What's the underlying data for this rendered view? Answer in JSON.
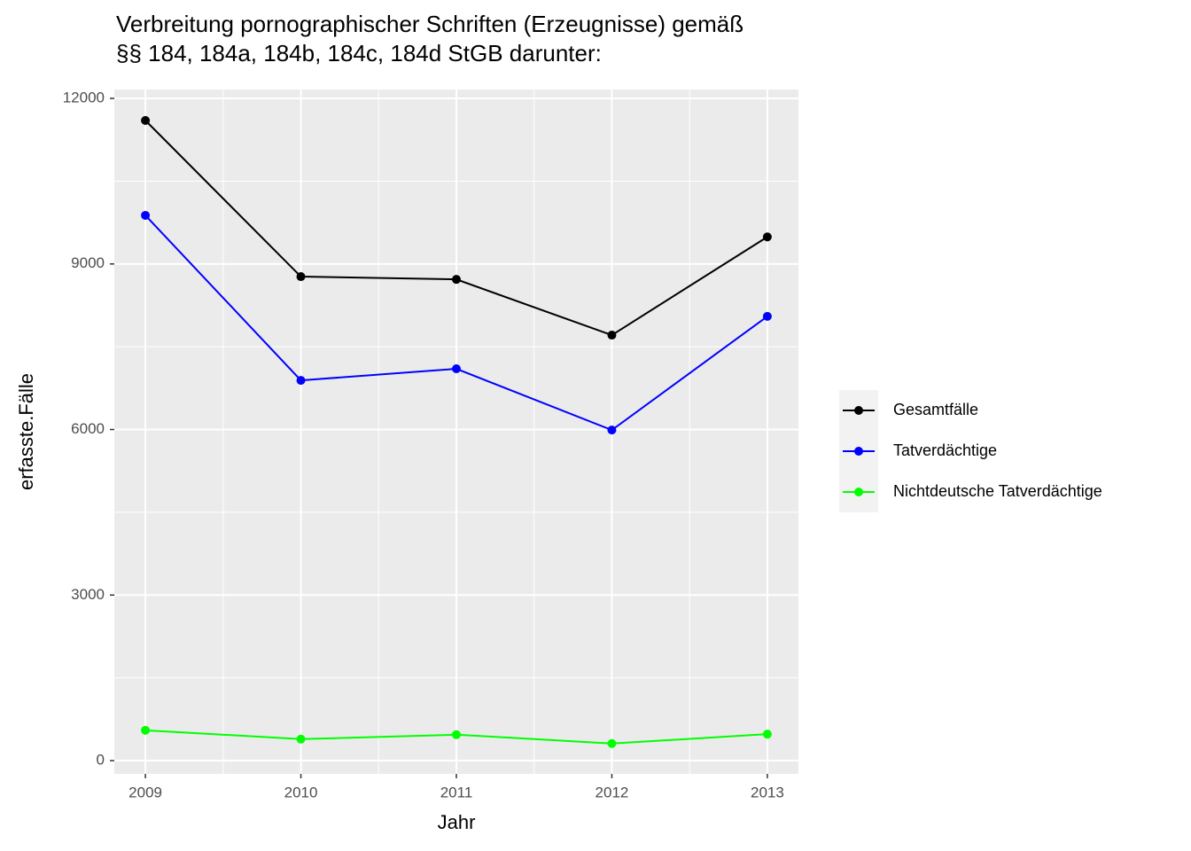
{
  "chart_data": {
    "type": "line",
    "title": [
      "Verbreitung pornographischer Schriften (Erzeugnisse) gemäß",
      "§§ 184, 184a, 184b, 184c, 184d StGB darunter:"
    ],
    "x_label": "Jahr",
    "y_label": "erfasste.Fälle",
    "x": [
      2009,
      2010,
      2011,
      2012,
      2013
    ],
    "series": [
      {
        "name": "Gesamtfälle",
        "color": "#000000",
        "values": [
          11600,
          8770,
          8720,
          7710,
          9490
        ]
      },
      {
        "name": "Tatverdächtige",
        "color": "#0000ff",
        "values": [
          9880,
          6890,
          7100,
          5990,
          8050
        ]
      },
      {
        "name": "Nichtdeutsche Tatverdächtige",
        "color": "#00ff00",
        "values": [
          550,
          390,
          470,
          310,
          480
        ]
      }
    ],
    "xlim": [
      2008.8,
      2013.2
    ],
    "ylim": [
      -240,
      12160
    ],
    "xticks": [
      2009,
      2010,
      2011,
      2012,
      2013
    ],
    "yticks": [
      0,
      3000,
      6000,
      9000,
      12000
    ],
    "grid": true,
    "legend_position": "right"
  }
}
